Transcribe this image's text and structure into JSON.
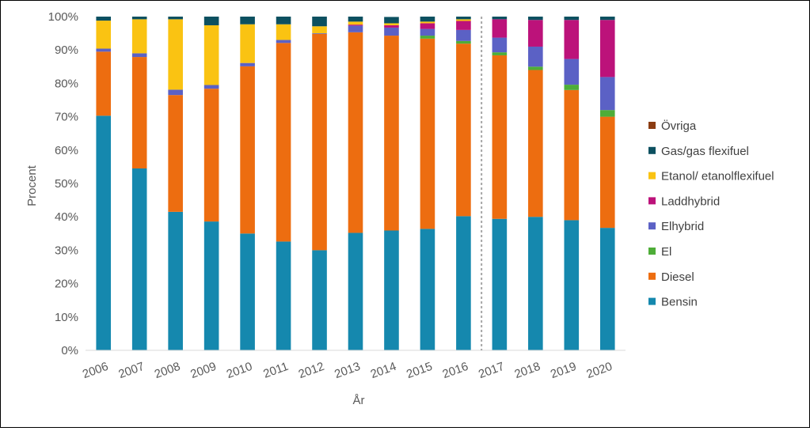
{
  "chart_data": {
    "type": "bar",
    "stacked": true,
    "normalized": true,
    "xlabel": "År",
    "ylabel": "Procent",
    "ylim": [
      0,
      100
    ],
    "y_ticks": [
      "0%",
      "10%",
      "20%",
      "30%",
      "40%",
      "50%",
      "60%",
      "70%",
      "80%",
      "90%",
      "100%"
    ],
    "grid": false,
    "legend_position": "right",
    "divider_after_category": "2016",
    "categories": [
      "2006",
      "2007",
      "2008",
      "2009",
      "2010",
      "2011",
      "2012",
      "2013",
      "2014",
      "2015",
      "2016",
      "2017",
      "2018",
      "2019",
      "2020"
    ],
    "series": [
      {
        "name": "Bensin",
        "color": "#1588AE",
        "values": [
          70.3,
          54.5,
          41.5,
          38.6,
          35.0,
          32.6,
          30.0,
          35.2,
          35.9,
          36.4,
          40.2,
          39.4,
          40.0,
          39.0,
          36.7
        ]
      },
      {
        "name": "Diesel",
        "color": "#ED6D10",
        "values": [
          19.2,
          33.4,
          35.0,
          39.8,
          50.1,
          59.5,
          64.8,
          60.1,
          58.4,
          57.0,
          51.7,
          49.0,
          44.0,
          39.0,
          33.3
        ]
      },
      {
        "name": "El",
        "color": "#4EAD38",
        "values": [
          0,
          0,
          0,
          0,
          0,
          0,
          0,
          0,
          0,
          0.9,
          0.8,
          0.9,
          1.0,
          1.6,
          2.0
        ]
      },
      {
        "name": "Elhybrid",
        "color": "#5B61C5",
        "values": [
          0.9,
          1.1,
          1.6,
          1.1,
          1.0,
          0.9,
          0.2,
          2.0,
          2.4,
          2.0,
          3.3,
          4.4,
          6.0,
          7.7,
          9.9
        ]
      },
      {
        "name": "Laddhybrid",
        "color": "#BC127A",
        "values": [
          0,
          0,
          0,
          0,
          0,
          0,
          0,
          0.3,
          0.7,
          1.7,
          2.7,
          5.5,
          8.0,
          11.7,
          17.1
        ]
      },
      {
        "name": "Etanol/ etanolflexifuel",
        "color": "#FAC312",
        "values": [
          8.4,
          10.2,
          21.1,
          17.9,
          11.6,
          4.7,
          2.1,
          0.9,
          0.6,
          0.5,
          0.5,
          0,
          0,
          0,
          0
        ]
      },
      {
        "name": "Gas/gas flexifuel",
        "color": "#0C5060",
        "values": [
          1.2,
          0.8,
          0.8,
          2.6,
          2.3,
          2.3,
          2.9,
          1.5,
          1.9,
          1.5,
          0.8,
          0.8,
          1.0,
          1.0,
          1.0
        ]
      },
      {
        "name": "Övriga",
        "color": "#8B3C12",
        "values": [
          0,
          0,
          0,
          0,
          0,
          0,
          0,
          0,
          0,
          0,
          0,
          0,
          0,
          0,
          0
        ]
      }
    ],
    "legend_order": [
      "Övriga",
      "Gas/gas flexifuel",
      "Etanol/ etanolflexifuel",
      "Laddhybrid",
      "Elhybrid",
      "El",
      "Diesel",
      "Bensin"
    ]
  }
}
